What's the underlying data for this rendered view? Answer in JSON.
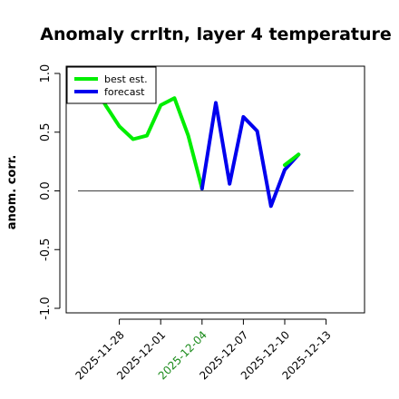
{
  "chart_data": {
    "type": "line",
    "title": "Anomaly crrltn, layer 4 temperature",
    "ylabel": "anom. corr.",
    "xlabel": "",
    "ylim": [
      -1.0,
      1.0
    ],
    "yticks": [
      -1.0,
      -0.5,
      0.0,
      0.5,
      1.0
    ],
    "ytick_labels": [
      "-1.0",
      "-0.5",
      "0.0",
      "0.5",
      "1.0"
    ],
    "xlim": [
      "2025-11-25",
      "2025-12-15"
    ],
    "xticks": [
      "2025-11-28",
      "2025-12-01",
      "2025-12-04",
      "2025-12-07",
      "2025-12-10",
      "2025-12-13"
    ],
    "highlighted_xtick": "2025-12-04",
    "highlight_color": "#1a8a1a",
    "reference_line": 0.0,
    "legend_position": "top-left",
    "series": [
      {
        "name": "best est.",
        "color": "#00ee00",
        "x": [
          "2025-11-26",
          "2025-11-27",
          "2025-11-28",
          "2025-11-29",
          "2025-11-30",
          "2025-12-01",
          "2025-12-02",
          "2025-12-03",
          "2025-12-04"
        ],
        "y": [
          0.93,
          0.73,
          0.55,
          0.44,
          0.47,
          0.73,
          0.79,
          0.47,
          0.02
        ]
      },
      {
        "name": "forecast",
        "color": "#0000ee",
        "x": [
          "2025-12-04",
          "2025-12-05",
          "2025-12-06",
          "2025-12-07",
          "2025-12-08",
          "2025-12-09",
          "2025-12-10",
          "2025-12-11"
        ],
        "y": [
          0.02,
          0.75,
          0.06,
          0.63,
          0.51,
          -0.13,
          0.18,
          0.31
        ]
      },
      {
        "name": "",
        "color": "#00ee00",
        "x": [
          "2025-12-10",
          "2025-12-11"
        ],
        "y": [
          0.22,
          0.31
        ]
      }
    ]
  }
}
